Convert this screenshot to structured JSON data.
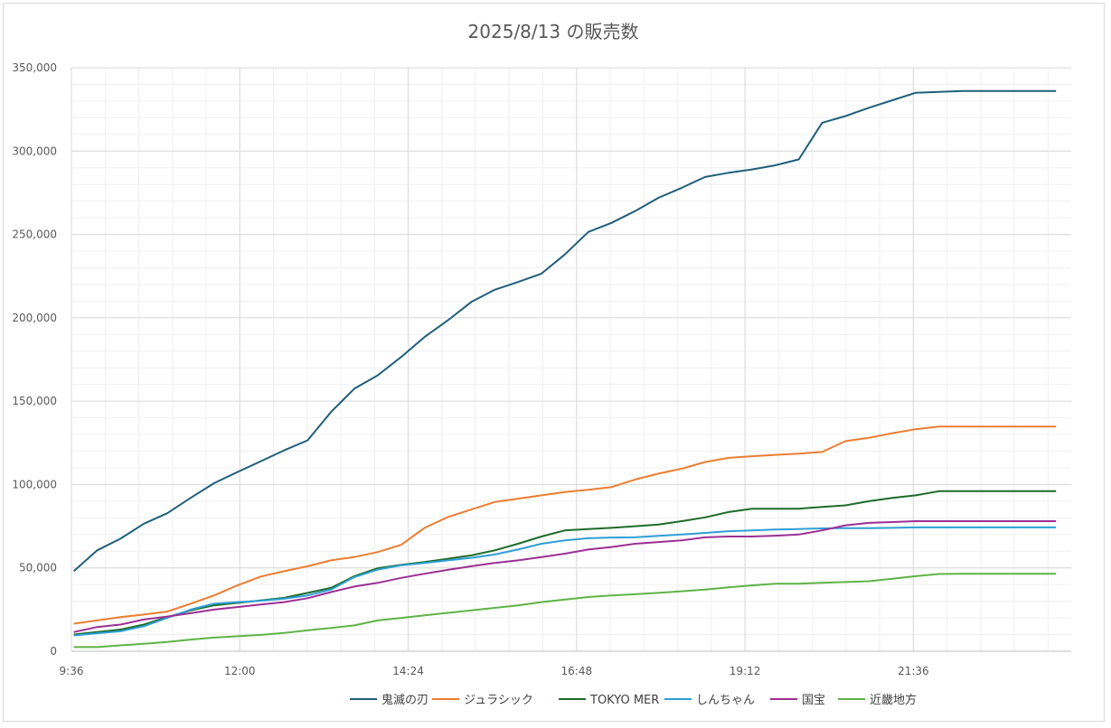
{
  "chart_data": {
    "type": "line",
    "title": "2025/8/13 の販売数",
    "xlabel": "",
    "ylabel": "",
    "ylim": [
      0,
      350000
    ],
    "yticks": [
      0,
      50000,
      100000,
      150000,
      200000,
      250000,
      300000,
      350000
    ],
    "ytick_labels": [
      "0",
      "50,000",
      "100,000",
      "150,000",
      "200,000",
      "250,000",
      "300,000",
      "350,000"
    ],
    "xlim_minutes": [
      576,
      1431
    ],
    "xticks": [
      "9:36",
      "12:00",
      "14:24",
      "16:48",
      "19:12",
      "21:36"
    ],
    "grid": true,
    "legend_position": "bottom",
    "x": [
      "9:38",
      "9:58",
      "10:18",
      "10:38",
      "10:58",
      "11:18",
      "11:38",
      "11:58",
      "12:18",
      "12:38",
      "12:58",
      "13:18",
      "13:38",
      "13:58",
      "14:18",
      "14:38",
      "14:58",
      "15:18",
      "15:38",
      "15:58",
      "16:18",
      "16:38",
      "16:58",
      "17:18",
      "17:38",
      "17:58",
      "18:18",
      "18:38",
      "18:58",
      "19:18",
      "19:38",
      "19:58",
      "20:18",
      "20:38",
      "20:58",
      "21:18",
      "21:38",
      "21:58",
      "22:18",
      "22:38",
      "22:58",
      "23:18",
      "23:38"
    ],
    "series": [
      {
        "name": "鬼滅の刃",
        "color": "#1f5f7a",
        "values": [
          48000,
          60500,
          67500,
          76500,
          82800,
          92000,
          100800,
          107500,
          114000,
          120500,
          126500,
          143500,
          157500,
          165500,
          176500,
          188500,
          198500,
          209500,
          216800,
          221500,
          226500,
          238000,
          251500,
          257000,
          264000,
          272000,
          278000,
          284500,
          287000,
          289000,
          291500,
          295000,
          317000,
          321000,
          326000,
          330500,
          335000,
          335500,
          336000,
          336000,
          336000,
          336000,
          336000
        ]
      },
      {
        "name": "ジュラシック",
        "color": "#ed7d31",
        "values": [
          16500,
          18500,
          20500,
          22000,
          23800,
          28500,
          33500,
          39500,
          44800,
          48000,
          51000,
          54500,
          56500,
          59500,
          63800,
          74000,
          80500,
          85000,
          89500,
          91500,
          93500,
          95500,
          96800,
          98500,
          103000,
          106500,
          109500,
          113500,
          116000,
          117000,
          117800,
          118500,
          119500,
          126000,
          128000,
          130800,
          133200,
          134800,
          134800,
          134800,
          134800,
          134800,
          134800
        ]
      },
      {
        "name": "TOKYO MER",
        "color": "#1e6b2a",
        "values": [
          10000,
          11500,
          13000,
          16000,
          20500,
          24500,
          27500,
          29000,
          30500,
          32000,
          35000,
          38000,
          45000,
          49800,
          51800,
          53500,
          55500,
          57500,
          60500,
          64500,
          68800,
          72500,
          73300,
          74000,
          75000,
          76000,
          78000,
          80300,
          83500,
          85500,
          85500,
          85500,
          86500,
          87500,
          90000,
          92000,
          93500,
          96000,
          96000,
          96000,
          96000,
          96000,
          96000
        ]
      },
      {
        "name": "しんちゃん",
        "color": "#2e9fd6",
        "values": [
          9500,
          10800,
          12000,
          15000,
          20000,
          25000,
          28500,
          29500,
          30300,
          31500,
          33500,
          37000,
          44500,
          49000,
          51500,
          53000,
          54500,
          56000,
          58000,
          61000,
          64500,
          66500,
          67800,
          68200,
          68300,
          69200,
          70000,
          71000,
          72000,
          72500,
          73000,
          73300,
          73700,
          73800,
          73800,
          74000,
          74300,
          74300,
          74300,
          74300,
          74300,
          74300,
          74300
        ]
      },
      {
        "name": "国宝",
        "color": "#9c2f95",
        "values": [
          11500,
          14500,
          16000,
          19000,
          20800,
          22800,
          25000,
          26500,
          28000,
          29500,
          31800,
          35500,
          38800,
          41000,
          44000,
          46500,
          48800,
          51000,
          53000,
          54500,
          56500,
          58500,
          61000,
          62500,
          64500,
          65500,
          66500,
          68300,
          68800,
          68800,
          69300,
          70000,
          72500,
          75500,
          77000,
          77500,
          78000,
          78000,
          78000,
          78000,
          78000,
          78000,
          78000
        ]
      },
      {
        "name": "近畿地方",
        "color": "#5fb346",
        "values": [
          2500,
          2500,
          3500,
          4500,
          5500,
          7000,
          8200,
          9000,
          9800,
          11000,
          12500,
          14000,
          15500,
          18500,
          20000,
          21500,
          23000,
          24500,
          26000,
          27500,
          29500,
          31000,
          32500,
          33500,
          34200,
          35000,
          36000,
          37000,
          38300,
          39500,
          40500,
          40500,
          41000,
          41500,
          42000,
          43500,
          45000,
          46300,
          46500,
          46500,
          46500,
          46500,
          46500
        ]
      }
    ]
  }
}
